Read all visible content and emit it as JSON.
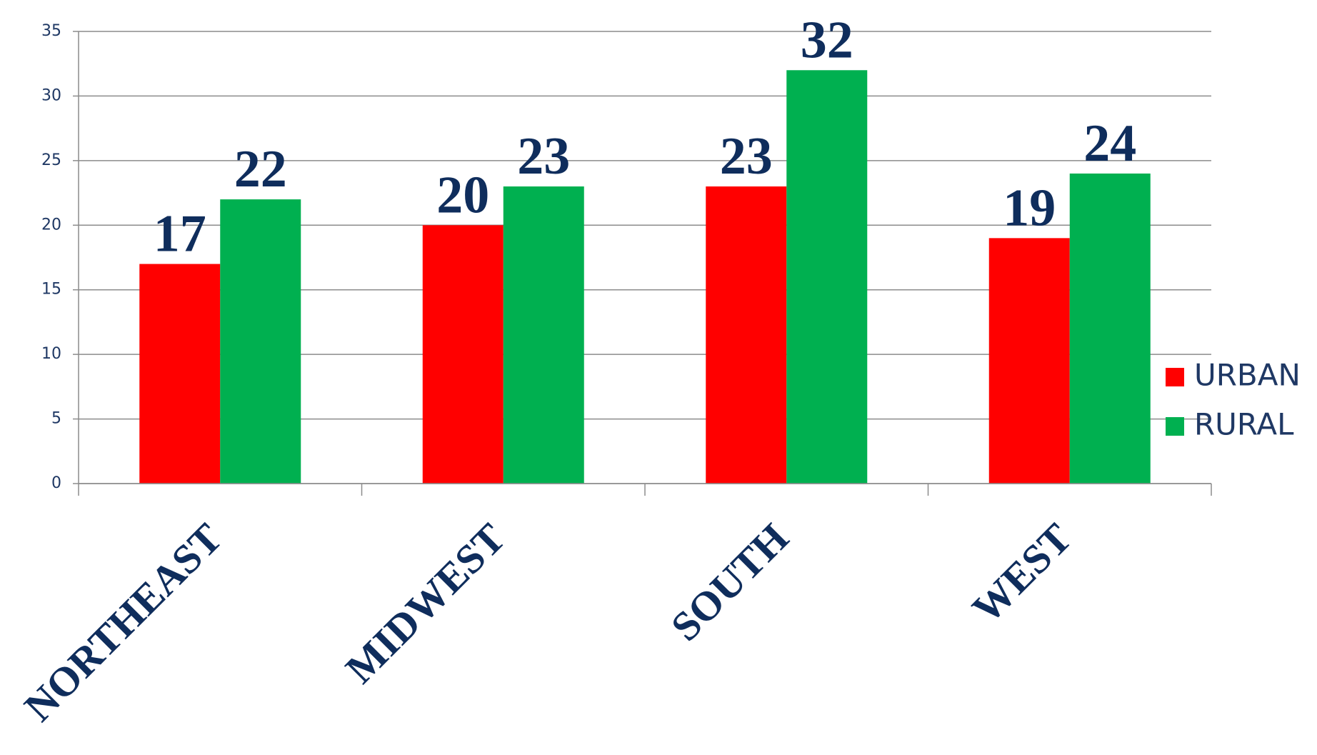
{
  "chart_data": {
    "type": "bar",
    "categories": [
      "NORTHEAST",
      "MIDWEST",
      "SOUTH",
      "WEST"
    ],
    "series": [
      {
        "name": "URBAN",
        "color": "#ff0000",
        "values": [
          17,
          20,
          23,
          19
        ]
      },
      {
        "name": "RURAL",
        "color": "#00b050",
        "values": [
          22,
          23,
          32,
          24
        ]
      }
    ],
    "ylim": [
      0,
      35
    ],
    "yticks": [
      0,
      5,
      10,
      15,
      20,
      25,
      30,
      35
    ],
    "grid": true,
    "legend": "right"
  }
}
